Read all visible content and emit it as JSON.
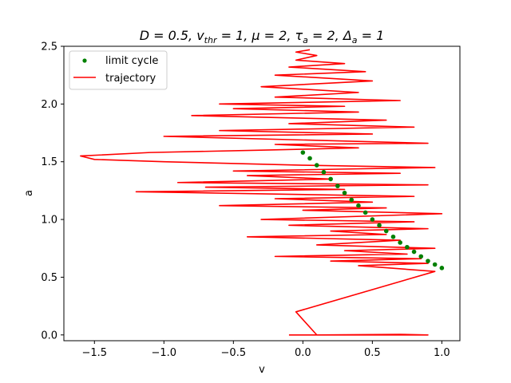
{
  "chart_data": {
    "type": "line",
    "title": {
      "base": "D = 0.5, v",
      "sub1": "thr",
      "mid1": " = 1, μ = 2, τ",
      "sub2": "a",
      "mid2": " = 2, Δ",
      "sub3": "a",
      "end": " = 1"
    },
    "xlabel": "v",
    "ylabel": "a",
    "xlim": [
      -1.72,
      1.13
    ],
    "ylim": [
      -0.05,
      2.5
    ],
    "xticks": [
      {
        "value": -1.5,
        "label": "−1.5"
      },
      {
        "value": -1.0,
        "label": "−1.0"
      },
      {
        "value": -0.5,
        "label": "−0.5"
      },
      {
        "value": 0.0,
        "label": "0.0"
      },
      {
        "value": 0.5,
        "label": "0.5"
      },
      {
        "value": 1.0,
        "label": "1.0"
      }
    ],
    "yticks": [
      {
        "value": 0.0,
        "label": "0.0"
      },
      {
        "value": 0.5,
        "label": "0.5"
      },
      {
        "value": 1.0,
        "label": "1.0"
      },
      {
        "value": 1.5,
        "label": "1.5"
      },
      {
        "value": 2.0,
        "label": "2.0"
      },
      {
        "value": 2.5,
        "label": "2.5"
      }
    ],
    "grid": false,
    "legend_position": "top-left",
    "series": [
      {
        "name": "limit cycle",
        "style": "markers",
        "color": "#008000",
        "points": [
          [
            0.0,
            1.58
          ],
          [
            0.05,
            1.53
          ],
          [
            0.1,
            1.47
          ],
          [
            0.15,
            1.41
          ],
          [
            0.2,
            1.35
          ],
          [
            0.25,
            1.29
          ],
          [
            0.3,
            1.23
          ],
          [
            0.35,
            1.17
          ],
          [
            0.4,
            1.12
          ],
          [
            0.45,
            1.06
          ],
          [
            0.5,
            1.0
          ],
          [
            0.55,
            0.95
          ],
          [
            0.6,
            0.9
          ],
          [
            0.65,
            0.85
          ],
          [
            0.7,
            0.8
          ],
          [
            0.75,
            0.76
          ],
          [
            0.8,
            0.72
          ],
          [
            0.85,
            0.68
          ],
          [
            0.9,
            0.64
          ],
          [
            0.95,
            0.61
          ],
          [
            1.0,
            0.58
          ]
        ]
      },
      {
        "name": "trajectory",
        "style": "line",
        "color": "#ff0000",
        "points": [
          [
            -0.1,
            0.0
          ],
          [
            0.9,
            0.0
          ],
          [
            0.7,
            0.005
          ],
          [
            0.1,
            0.0
          ],
          [
            -0.05,
            0.2
          ],
          [
            0.95,
            0.55
          ],
          [
            0.4,
            0.6
          ],
          [
            0.9,
            0.62
          ],
          [
            0.2,
            0.64
          ],
          [
            0.85,
            0.66
          ],
          [
            -0.2,
            0.68
          ],
          [
            0.75,
            0.7
          ],
          [
            0.3,
            0.73
          ],
          [
            0.95,
            0.75
          ],
          [
            0.1,
            0.78
          ],
          [
            0.7,
            0.82
          ],
          [
            -0.4,
            0.85
          ],
          [
            0.6,
            0.87
          ],
          [
            0.2,
            0.9
          ],
          [
            0.9,
            0.92
          ],
          [
            -0.1,
            0.95
          ],
          [
            0.8,
            0.98
          ],
          [
            -0.3,
            1.0
          ],
          [
            1.0,
            1.05
          ],
          [
            0.0,
            1.08
          ],
          [
            0.6,
            1.1
          ],
          [
            -0.6,
            1.12
          ],
          [
            0.5,
            1.15
          ],
          [
            -0.2,
            1.18
          ],
          [
            0.8,
            1.2
          ],
          [
            -1.2,
            1.24
          ],
          [
            0.3,
            1.26
          ],
          [
            -0.7,
            1.28
          ],
          [
            0.9,
            1.3
          ],
          [
            -0.9,
            1.32
          ],
          [
            0.2,
            1.35
          ],
          [
            -0.4,
            1.38
          ],
          [
            0.7,
            1.4
          ],
          [
            -0.5,
            1.42
          ],
          [
            0.95,
            1.45
          ],
          [
            0.0,
            1.47
          ],
          [
            -1.0,
            1.5
          ],
          [
            -1.5,
            1.52
          ],
          [
            -1.6,
            1.55
          ],
          [
            -1.1,
            1.58
          ],
          [
            -0.3,
            1.6
          ],
          [
            0.4,
            1.62
          ],
          [
            -0.2,
            1.65
          ],
          [
            0.9,
            1.66
          ],
          [
            -1.0,
            1.72
          ],
          [
            0.5,
            1.74
          ],
          [
            -0.6,
            1.77
          ],
          [
            0.8,
            1.8
          ],
          [
            -0.1,
            1.83
          ],
          [
            0.6,
            1.86
          ],
          [
            -0.8,
            1.9
          ],
          [
            0.4,
            1.93
          ],
          [
            -0.5,
            1.96
          ],
          [
            0.3,
            1.98
          ],
          [
            -0.6,
            2.0
          ],
          [
            0.7,
            2.03
          ],
          [
            -0.2,
            2.06
          ],
          [
            0.4,
            2.1
          ],
          [
            -0.3,
            2.15
          ],
          [
            0.5,
            2.2
          ],
          [
            -0.2,
            2.25
          ],
          [
            0.45,
            2.28
          ],
          [
            -0.1,
            2.32
          ],
          [
            0.3,
            2.35
          ],
          [
            -0.05,
            2.38
          ],
          [
            0.1,
            2.42
          ],
          [
            -0.05,
            2.45
          ],
          [
            0.05,
            2.47
          ]
        ]
      }
    ]
  }
}
